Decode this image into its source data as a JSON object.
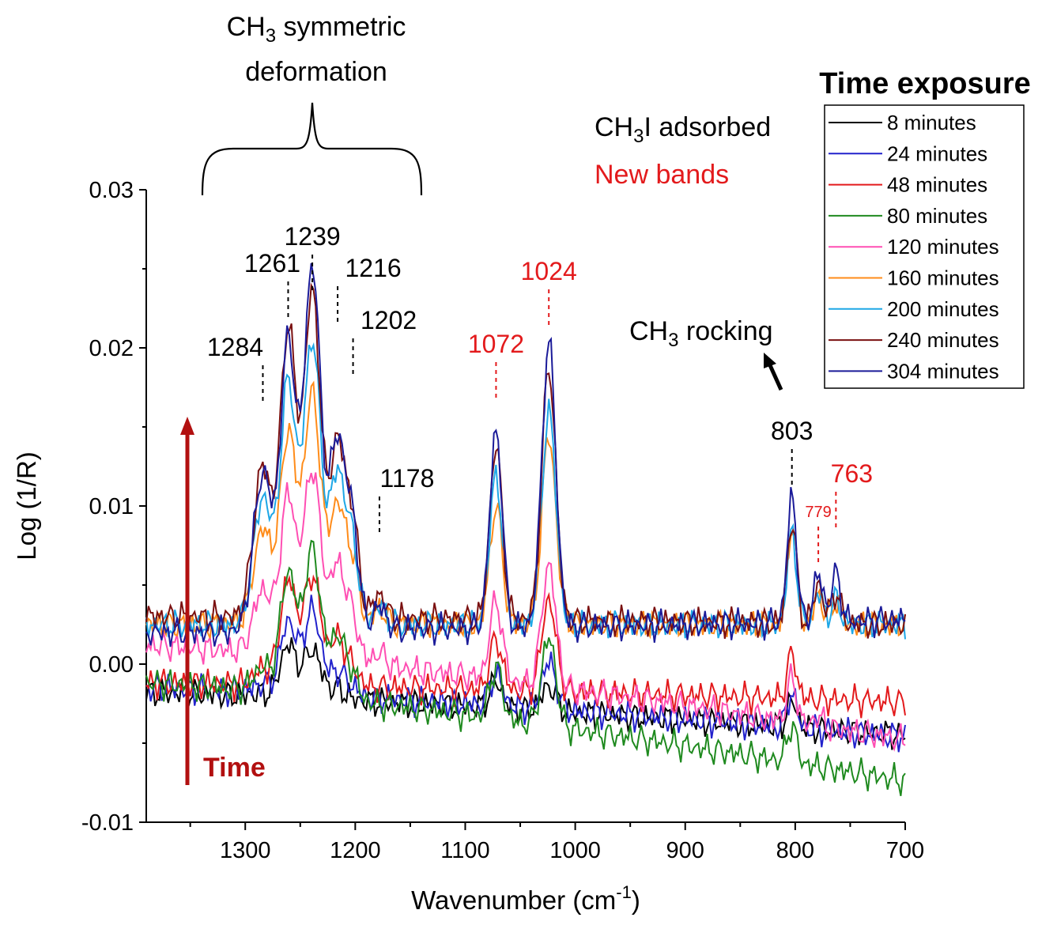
{
  "chart_data": {
    "type": "line",
    "xlabel": "Wavenumber (cm",
    "xlabel_sup": "-1",
    "xlabel_end": ")",
    "ylabel": "Log (1/R)",
    "xlim": [
      1390,
      700
    ],
    "ylim": [
      -0.01,
      0.03
    ],
    "x_reversed": true,
    "x_ticks": [
      1300,
      1200,
      1100,
      1000,
      900,
      800,
      700
    ],
    "y_ticks": [
      {
        "value": -0.01,
        "label": "-0.01"
      },
      {
        "value": 0.0,
        "label": "0.00"
      },
      {
        "value": 0.01,
        "label": "0.01"
      },
      {
        "value": 0.02,
        "label": "0.02"
      },
      {
        "value": 0.03,
        "label": "0.03"
      }
    ],
    "grid": false,
    "legend": {
      "title": "Time exposure",
      "placement": "top-right",
      "entries": [
        "8 minutes",
        "24 minutes",
        "48 minutes",
        "80  minutes",
        "120 minutes",
        "160 minutes",
        "200 minutes",
        "240 minutes",
        "304 minutes"
      ]
    },
    "series": [
      {
        "name": "8 minutes",
        "color": "#000000",
        "baseline": -0.0018,
        "drift": -0.0027,
        "peaks": [
          [
            1284,
            0.0002,
            12
          ],
          [
            1261,
            0.0033,
            10
          ],
          [
            1239,
            0.0031,
            11
          ],
          [
            1216,
            0.0007,
            10
          ],
          [
            1072,
            0.0017,
            8
          ],
          [
            1024,
            0.0016,
            9
          ],
          [
            803,
            0.0017,
            6
          ]
        ]
      },
      {
        "name": "24 minutes",
        "color": "#2222cc",
        "baseline": -0.0015,
        "drift": -0.0031,
        "peaks": [
          [
            1284,
            0.0005,
            12
          ],
          [
            1261,
            0.0045,
            10
          ],
          [
            1239,
            0.0053,
            11
          ],
          [
            1216,
            0.0015,
            10
          ],
          [
            1202,
            0.0005,
            8
          ],
          [
            1072,
            0.002,
            8
          ],
          [
            1024,
            0.003,
            9
          ],
          [
            803,
            0.0022,
            6
          ]
        ]
      },
      {
        "name": "48 minutes",
        "color": "#e31a1c",
        "baseline": -0.0012,
        "drift": -0.0012,
        "peaks": [
          [
            1284,
            0.001,
            12
          ],
          [
            1261,
            0.0066,
            10
          ],
          [
            1239,
            0.007,
            11
          ],
          [
            1216,
            0.003,
            10
          ],
          [
            1202,
            0.001,
            8
          ],
          [
            1072,
            0.0032,
            8
          ],
          [
            1024,
            0.0058,
            9
          ],
          [
            803,
            0.0028,
            6
          ]
        ]
      },
      {
        "name": "80  minutes",
        "color": "#1f8a1f",
        "baseline": -0.0012,
        "drift": -0.0062,
        "peaks": [
          [
            1284,
            0.0015,
            12
          ],
          [
            1261,
            0.0076,
            10
          ],
          [
            1239,
            0.0092,
            11
          ],
          [
            1216,
            0.004,
            10
          ],
          [
            1202,
            0.0014,
            8
          ],
          [
            1072,
            0.0033,
            8
          ],
          [
            1024,
            0.0056,
            9
          ],
          [
            803,
            0.0024,
            6
          ]
        ]
      },
      {
        "name": "120 minutes",
        "color": "#ff4fb3",
        "baseline": 0.0012,
        "drift": -0.006,
        "peaks": [
          [
            1284,
            0.004,
            12
          ],
          [
            1261,
            0.01,
            10
          ],
          [
            1239,
            0.012,
            11
          ],
          [
            1216,
            0.006,
            10
          ],
          [
            1202,
            0.0025,
            8
          ],
          [
            1178,
            0.0008,
            8
          ],
          [
            1072,
            0.005,
            8
          ],
          [
            1024,
            0.0077,
            9
          ],
          [
            803,
            0.0028,
            6
          ],
          [
            779,
            0.0006,
            6
          ]
        ]
      },
      {
        "name": "160 minutes",
        "color": "#ff8c1a",
        "baseline": 0.0025,
        "drift": 0.0,
        "peaks": [
          [
            1284,
            0.006,
            12
          ],
          [
            1261,
            0.012,
            10
          ],
          [
            1239,
            0.0145,
            11
          ],
          [
            1216,
            0.0075,
            10
          ],
          [
            1202,
            0.0035,
            8
          ],
          [
            1178,
            0.001,
            8
          ],
          [
            1072,
            0.0075,
            8
          ],
          [
            1024,
            0.012,
            9
          ],
          [
            803,
            0.0063,
            6
          ],
          [
            779,
            0.0018,
            6
          ],
          [
            763,
            0.0015,
            6
          ]
        ]
      },
      {
        "name": "200 minutes",
        "color": "#1ea7e6",
        "baseline": 0.0025,
        "drift": 0.0,
        "peaks": [
          [
            1284,
            0.008,
            12
          ],
          [
            1261,
            0.015,
            10
          ],
          [
            1239,
            0.018,
            11
          ],
          [
            1216,
            0.0095,
            10
          ],
          [
            1202,
            0.0045,
            8
          ],
          [
            1178,
            0.0012,
            8
          ],
          [
            1072,
            0.0095,
            8
          ],
          [
            1024,
            0.0135,
            9
          ],
          [
            803,
            0.0058,
            6
          ],
          [
            779,
            0.002,
            6
          ],
          [
            763,
            0.0016,
            6
          ]
        ]
      },
      {
        "name": "240 minutes",
        "color": "#7a1010",
        "baseline": 0.003,
        "drift": -0.0005,
        "peaks": [
          [
            1284,
            0.0095,
            12
          ],
          [
            1261,
            0.018,
            10
          ],
          [
            1239,
            0.0205,
            11
          ],
          [
            1216,
            0.011,
            10
          ],
          [
            1202,
            0.0055,
            8
          ],
          [
            1178,
            0.0015,
            8
          ],
          [
            1072,
            0.011,
            8
          ],
          [
            1024,
            0.016,
            9
          ],
          [
            803,
            0.0064,
            6
          ],
          [
            779,
            0.0025,
            6
          ],
          [
            763,
            0.002,
            6
          ]
        ]
      },
      {
        "name": "304 minutes",
        "color": "#1b1b99",
        "baseline": 0.002,
        "drift": 0.0008,
        "peaks": [
          [
            1284,
            0.01,
            12
          ],
          [
            1261,
            0.018,
            10
          ],
          [
            1239,
            0.023,
            11
          ],
          [
            1216,
            0.012,
            10
          ],
          [
            1202,
            0.006,
            8
          ],
          [
            1178,
            0.0015,
            8
          ],
          [
            1072,
            0.0125,
            8
          ],
          [
            1024,
            0.018,
            9
          ],
          [
            803,
            0.008,
            6
          ],
          [
            779,
            0.003,
            6
          ],
          [
            763,
            0.003,
            6
          ]
        ]
      }
    ],
    "annotations": {
      "group_title_line1": "CH",
      "group_title_sub": "3",
      "group_title_rest": " symmetric",
      "group_title_line2": "deformation",
      "rocking_pre": "CH",
      "rocking_sub": "3",
      "rocking_post": " rocking",
      "adsorbed_pre": "CH",
      "adsorbed_sub": "3",
      "adsorbed_post": "I adsorbed",
      "new_bands": "New bands",
      "time_arrow": "Time",
      "peak_labels": [
        {
          "text": "1239",
          "x": 1239,
          "y": 0.0265,
          "color": "#000000",
          "line_to": 0.0285,
          "line_from": 0.0267
        },
        {
          "text": "1261",
          "x": 1261,
          "y": 0.0248,
          "color": "#000000"
        },
        {
          "text": "1216",
          "x": 1216,
          "y": 0.0245,
          "color": "#000000"
        },
        {
          "text": "1202",
          "x": 1202,
          "y": 0.0212,
          "color": "#000000"
        },
        {
          "text": "1284",
          "x": 1284,
          "y": 0.0195,
          "color": "#000000"
        },
        {
          "text": "1178",
          "x": 1178,
          "y": 0.0112,
          "color": "#000000"
        },
        {
          "text": "1072",
          "x": 1072,
          "y": 0.0197,
          "color": "#e31a1c"
        },
        {
          "text": "1024",
          "x": 1024,
          "y": 0.0243,
          "color": "#e31a1c"
        },
        {
          "text": "803",
          "x": 803,
          "y": 0.0142,
          "color": "#000000"
        },
        {
          "text": "763",
          "x": 763,
          "y": 0.0115,
          "color": "#e31a1c"
        },
        {
          "text": "779",
          "x": 779,
          "y": 0.0093,
          "color": "#e31a1c"
        }
      ]
    }
  }
}
